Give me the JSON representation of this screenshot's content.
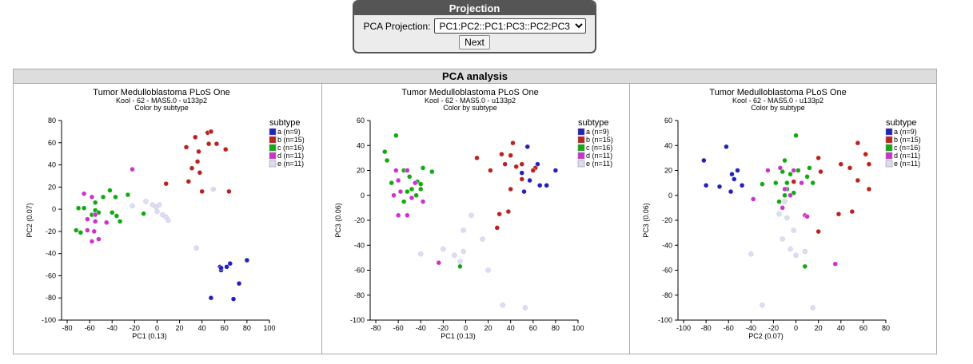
{
  "projection": {
    "title": "Projection",
    "label": "PCA Projection:",
    "selected": "PC1:PC2::PC1:PC3::PC2:PC3",
    "next_label": "Next"
  },
  "panel": {
    "title": "PCA analysis"
  },
  "colors": {
    "a": "#2222bb",
    "b": "#bb2222",
    "c": "#11aa11",
    "d": "#cc33cc",
    "e": "#dcdcf2"
  },
  "legend": {
    "title": "subtype",
    "items": [
      {
        "key": "a",
        "label": "a (n=9)"
      },
      {
        "key": "b",
        "label": "b (n=15)"
      },
      {
        "key": "c",
        "label": "c (n=16)"
      },
      {
        "key": "d",
        "label": "d (n=11)"
      },
      {
        "key": "e",
        "label": "e (n=11)"
      }
    ]
  },
  "chart_data": [
    {
      "type": "scatter",
      "title": "Tumor Medulloblastoma PLoS One",
      "subtitle": "Kool - 62 - MAS5.0 - u133p2",
      "subtitle2": "Color by subtype",
      "xlabel": "PC1 (0.13)",
      "ylabel": "PC2 (0.07)",
      "xlim": [
        -85,
        100
      ],
      "ylim": [
        -100,
        80
      ],
      "xticks": [
        -80,
        -60,
        -40,
        -20,
        0,
        20,
        40,
        60,
        80,
        100
      ],
      "yticks": [
        -100,
        -80,
        -60,
        -40,
        -20,
        0,
        20,
        40,
        60,
        80
      ],
      "series": [
        {
          "key": "a",
          "points": [
            [
              56,
              -52
            ],
            [
              57,
              -55
            ],
            [
              62,
              -52
            ],
            [
              65,
              -49
            ],
            [
              80,
              -46
            ],
            [
              73,
              -67
            ],
            [
              68,
              -81
            ],
            [
              48,
              -80
            ],
            [
              57,
              -53
            ]
          ]
        },
        {
          "key": "b",
          "points": [
            [
              26,
              56
            ],
            [
              34,
              65
            ],
            [
              45,
              69
            ],
            [
              48,
              70
            ],
            [
              37,
              52
            ],
            [
              46,
              59
            ],
            [
              53,
              59
            ],
            [
              61,
              54
            ],
            [
              36,
              43
            ],
            [
              31,
              37
            ],
            [
              38,
              33
            ],
            [
              28,
              25
            ],
            [
              40,
              16
            ],
            [
              64,
              16
            ],
            [
              8,
              23
            ]
          ]
        },
        {
          "key": "c",
          "points": [
            [
              -70,
              1
            ],
            [
              -65,
              1
            ],
            [
              -58,
              -5
            ],
            [
              -55,
              6
            ],
            [
              -55,
              -1
            ],
            [
              -52,
              -3
            ],
            [
              -48,
              11
            ],
            [
              -42,
              17
            ],
            [
              -40,
              -3
            ],
            [
              -37,
              11
            ],
            [
              -36,
              -6
            ],
            [
              -33,
              -11
            ],
            [
              -26,
              13
            ],
            [
              -12,
              -4
            ],
            [
              -72,
              -19
            ],
            [
              -68,
              -21
            ]
          ]
        },
        {
          "key": "d",
          "points": [
            [
              -65,
              14
            ],
            [
              -58,
              11
            ],
            [
              -55,
              -5
            ],
            [
              -62,
              -9
            ],
            [
              -55,
              -11
            ],
            [
              -62,
              -19
            ],
            [
              -56,
              -20
            ],
            [
              -52,
              -27
            ],
            [
              -58,
              -29
            ],
            [
              -45,
              -12
            ],
            [
              -22,
              36
            ]
          ]
        },
        {
          "key": "e",
          "points": [
            [
              -22,
              3
            ],
            [
              -10,
              7
            ],
            [
              -4,
              4
            ],
            [
              -1,
              2
            ],
            [
              2,
              4
            ],
            [
              0,
              -2
            ],
            [
              5,
              -5
            ],
            [
              8,
              -7
            ],
            [
              10,
              -10
            ],
            [
              50,
              18
            ],
            [
              35,
              -35
            ]
          ]
        }
      ]
    },
    {
      "type": "scatter",
      "title": "Tumor Medulloblastoma PLoS One",
      "subtitle": "Kool - 62 - MAS5.0 - u133p2",
      "subtitle2": "Color by subtype",
      "xlabel": "PC1 (0.13)",
      "ylabel": "PC3 (0.06)",
      "xlim": [
        -85,
        100
      ],
      "ylim": [
        -100,
        60
      ],
      "xticks": [
        -80,
        -60,
        -40,
        -20,
        0,
        20,
        40,
        60,
        80,
        100
      ],
      "yticks": [
        -100,
        -80,
        -60,
        -40,
        -20,
        0,
        20,
        40,
        60
      ],
      "series": [
        {
          "key": "a",
          "points": [
            [
              55,
              39
            ],
            [
              64,
              25
            ],
            [
              50,
              18
            ],
            [
              57,
              12
            ],
            [
              72,
              8
            ],
            [
              80,
              20
            ],
            [
              66,
              8
            ],
            [
              52,
              3
            ],
            [
              62,
              22
            ]
          ]
        },
        {
          "key": "b",
          "points": [
            [
              10,
              30
            ],
            [
              32,
              33
            ],
            [
              42,
              42
            ],
            [
              40,
              32
            ],
            [
              35,
              25
            ],
            [
              45,
              23
            ],
            [
              50,
              25
            ],
            [
              62,
              22
            ],
            [
              60,
              20
            ],
            [
              22,
              20
            ],
            [
              40,
              5
            ],
            [
              30,
              -15
            ],
            [
              38,
              -13
            ],
            [
              28,
              -26
            ],
            [
              50,
              13
            ]
          ]
        },
        {
          "key": "c",
          "points": [
            [
              -62,
              48
            ],
            [
              -72,
              35
            ],
            [
              -70,
              28
            ],
            [
              -66,
              10
            ],
            [
              -55,
              20
            ],
            [
              -50,
              15
            ],
            [
              -48,
              5
            ],
            [
              -43,
              11
            ],
            [
              -40,
              9
            ],
            [
              -38,
              22
            ],
            [
              -44,
              0
            ],
            [
              -40,
              5
            ],
            [
              -30,
              19
            ],
            [
              -52,
              3
            ],
            [
              -55,
              -5
            ],
            [
              -5,
              -57
            ]
          ]
        },
        {
          "key": "d",
          "points": [
            [
              -62,
              20
            ],
            [
              -60,
              12
            ],
            [
              -52,
              20
            ],
            [
              -45,
              10
            ],
            [
              -58,
              3
            ],
            [
              -48,
              -2
            ],
            [
              -64,
              0
            ],
            [
              -60,
              -16
            ],
            [
              -52,
              -16
            ],
            [
              -38,
              -5
            ],
            [
              -24,
              -54
            ]
          ]
        },
        {
          "key": "e",
          "points": [
            [
              5,
              -16
            ],
            [
              -10,
              -48
            ],
            [
              -2,
              -28
            ],
            [
              -20,
              -43
            ],
            [
              -2,
              -45
            ],
            [
              -40,
              -47
            ],
            [
              -5,
              -53
            ],
            [
              20,
              -60
            ],
            [
              33,
              -88
            ],
            [
              53,
              -90
            ],
            [
              15,
              -35
            ]
          ]
        }
      ]
    },
    {
      "type": "scatter",
      "title": "Tumor Medulloblastoma PLoS One",
      "subtitle": "Kool - 62 - MAS5.0 - u133p2",
      "subtitle2": "Color by subtype",
      "xlabel": "PC2 (0.07)",
      "ylabel": "PC3 (0.06)",
      "xlim": [
        -105,
        80
      ],
      "ylim": [
        -100,
        60
      ],
      "xticks": [
        -100,
        -80,
        -60,
        -40,
        -20,
        0,
        20,
        40,
        60,
        80
      ],
      "yticks": [
        -100,
        -80,
        -60,
        -40,
        -20,
        0,
        20,
        40,
        60
      ],
      "series": [
        {
          "key": "a",
          "points": [
            [
              -82,
              28
            ],
            [
              -80,
              8
            ],
            [
              -68,
              7
            ],
            [
              -62,
              39
            ],
            [
              -57,
              17
            ],
            [
              -52,
              20
            ],
            [
              -55,
              13
            ],
            [
              -48,
              8
            ],
            [
              -58,
              3
            ]
          ]
        },
        {
          "key": "b",
          "points": [
            [
              20,
              30
            ],
            [
              40,
              25
            ],
            [
              55,
              42
            ],
            [
              62,
              33
            ],
            [
              65,
              25
            ],
            [
              48,
              22
            ],
            [
              55,
              12
            ],
            [
              65,
              5
            ],
            [
              22,
              19
            ],
            [
              10,
              15
            ],
            [
              5,
              10
            ],
            [
              -2,
              11
            ],
            [
              38,
              -15
            ],
            [
              50,
              -13
            ],
            [
              20,
              -29
            ]
          ]
        },
        {
          "key": "c",
          "points": [
            [
              -30,
              9
            ],
            [
              -18,
              10
            ],
            [
              -12,
              19
            ],
            [
              -5,
              17
            ],
            [
              -2,
              2
            ],
            [
              0,
              48
            ],
            [
              2,
              20
            ],
            [
              10,
              15
            ],
            [
              12,
              22
            ],
            [
              -10,
              28
            ],
            [
              -8,
              5
            ],
            [
              -10,
              0
            ],
            [
              -8,
              10
            ],
            [
              -15,
              -5
            ],
            [
              15,
              10
            ],
            [
              8,
              -57
            ]
          ]
        },
        {
          "key": "d",
          "points": [
            [
              -25,
              20
            ],
            [
              -14,
              22
            ],
            [
              -2,
              20
            ],
            [
              5,
              10
            ],
            [
              -5,
              0
            ],
            [
              -10,
              5
            ],
            [
              -12,
              -10
            ],
            [
              8,
              -16
            ],
            [
              10,
              -17
            ],
            [
              -38,
              -3
            ],
            [
              35,
              -55
            ]
          ]
        },
        {
          "key": "e",
          "points": [
            [
              -10,
              -5
            ],
            [
              -15,
              -15
            ],
            [
              -8,
              -18
            ],
            [
              -2,
              -28
            ],
            [
              -12,
              -35
            ],
            [
              -5,
              -43
            ],
            [
              0,
              -48
            ],
            [
              8,
              -45
            ],
            [
              -40,
              -47
            ],
            [
              -30,
              -88
            ],
            [
              15,
              -90
            ]
          ]
        }
      ]
    }
  ]
}
